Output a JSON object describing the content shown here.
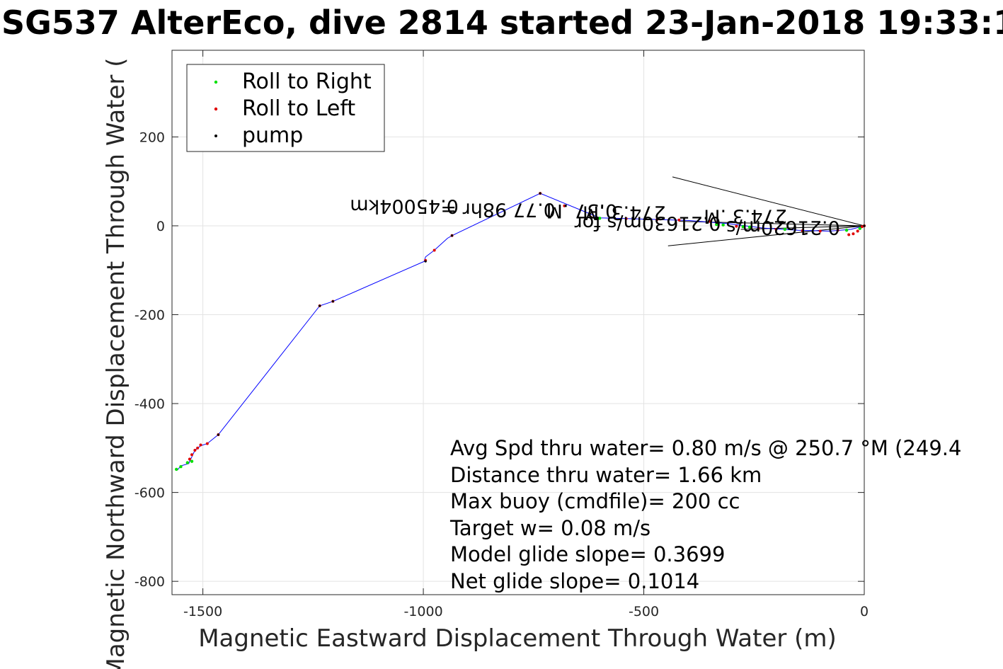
{
  "chart_data": {
    "type": "line",
    "title": "SG537 AlterEco, dive 2814 started 23-Jan-2018 19:33:1",
    "xlabel": "Magnetic Eastward Displacement Through Water (m)",
    "ylabel": "Magnetic Northward Displacement Through Water (",
    "xlim": [
      -1570,
      0
    ],
    "ylim": [
      -830,
      395
    ],
    "xticks": [
      -1500,
      -1000,
      -500,
      0
    ],
    "yticks": [
      -800,
      -600,
      -400,
      -200,
      0,
      200
    ],
    "xtick_labels": [
      "-1500",
      "-1000",
      "-500",
      "0"
    ],
    "ytick_labels": [
      "-800",
      "-600",
      "-400",
      "-200",
      "0",
      "200"
    ],
    "grid": true,
    "legend_position": "top-left",
    "legend": [
      {
        "name": "Roll to Right",
        "color": "#00e000"
      },
      {
        "name": "Roll to Left",
        "color": "#e00000"
      },
      {
        "name": "pump",
        "color": "#000000"
      }
    ],
    "track": {
      "color": "#0000ff",
      "x": [
        0,
        -30,
        -80,
        -150,
        -230,
        -310,
        -400,
        -500,
        -600,
        -735,
        -935,
        -945,
        -975,
        -995,
        -998,
        -1205,
        -1235,
        -1465,
        -1490,
        -1505,
        -1518,
        -1525,
        -1530,
        -1532,
        -1550,
        -1558
      ],
      "y": [
        0,
        -8,
        -12,
        -10,
        -5,
        5,
        12,
        15,
        18,
        73,
        -22,
        -28,
        -55,
        -70,
        -80,
        -170,
        -180,
        -470,
        -490,
        -495,
        -505,
        -520,
        -530,
        -535,
        -540,
        -550
      ]
    },
    "roll_right": {
      "color": "#00e000",
      "x": [
        -10,
        -40,
        -180,
        -260,
        -275,
        -320,
        -335,
        -600,
        -1525,
        -1535,
        -1550,
        -1560
      ],
      "y": [
        -6,
        -10,
        -8,
        -3,
        -2,
        2,
        3,
        17,
        -530,
        -533,
        -542,
        -548
      ]
    },
    "roll_left": {
      "color": "#e00000",
      "x": [
        0,
        -5,
        -15,
        -25,
        -35,
        -60,
        -100,
        -140,
        -200,
        -240,
        -290,
        -350,
        -420,
        -470,
        -540,
        -620,
        -680,
        -735,
        -935,
        -975,
        -995,
        -1205,
        -1235,
        -1465,
        -1490,
        -1505,
        -1512,
        -1518,
        -1525,
        -1530
      ],
      "y": [
        0,
        -2,
        -12,
        -18,
        -20,
        -10,
        -12,
        -11,
        -8,
        -6,
        -1,
        10,
        13,
        14,
        16,
        19,
        45,
        73,
        -22,
        -55,
        -78,
        -170,
        -180,
        -470,
        -490,
        -493,
        -500,
        -505,
        -515,
        -525
      ]
    },
    "pump": {
      "color": "#000000",
      "x": [
        0,
        -735,
        -935,
        -995,
        -1205,
        -1235,
        -1465
      ],
      "y": [
        0,
        73,
        -22,
        -80,
        -170,
        -180,
        -470
      ]
    },
    "heading_lines": [
      {
        "x": [
          0,
          -435
        ],
        "y": [
          0,
          110
        ]
      },
      {
        "x": [
          0,
          -445
        ],
        "y": [
          0,
          -45
        ]
      },
      {
        "x": [
          0,
          -420
        ],
        "y": [
          0,
          10
        ]
      },
      {
        "x": [
          0,
          -280
        ],
        "y": [
          0,
          -8
        ]
      }
    ],
    "flipped_labels": [
      "0.45004km",
      "0.77 98hr =",
      "0.37 .M",
      "274.3 .M",
      "0.21630m/s for",
      "274.3 .M",
      "0.21620m/s"
    ],
    "annotations": [
      "Avg Spd thru water=  0.80 m/s @ 250.7 °M (249.4",
      "Distance thru water=  1.66 km",
      "Max buoy (cmdfile)= 200 cc",
      "Target w= 0.08 m/s",
      "Model glide slope= 0.3699",
      "Net glide slope= 0.1014"
    ]
  }
}
